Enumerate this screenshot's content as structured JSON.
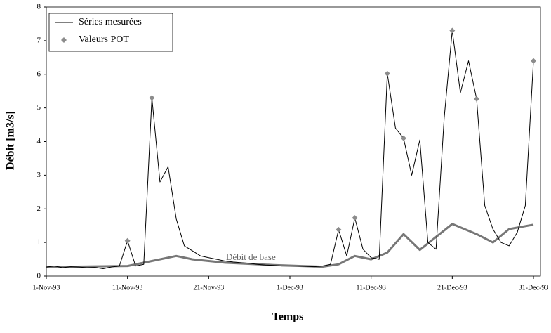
{
  "chart_data": {
    "type": "line",
    "xlabel": "Temps",
    "ylabel": "Débit [m3/s]",
    "xlim": [
      "1993-11-01",
      "1993-12-31"
    ],
    "ylim": [
      0,
      8
    ],
    "yticks": [
      0,
      1,
      2,
      3,
      4,
      5,
      6,
      7,
      8
    ],
    "xticks": [
      {
        "value": "1993-11-01",
        "label": "1-Nov-93"
      },
      {
        "value": "1993-11-11",
        "label": "11-Nov-93"
      },
      {
        "value": "1993-11-21",
        "label": "21-Nov-93"
      },
      {
        "value": "1993-12-01",
        "label": "1-Dec-93"
      },
      {
        "value": "1993-12-11",
        "label": "11-Dec-93"
      },
      {
        "value": "1993-12-21",
        "label": "21-Dec-93"
      },
      {
        "value": "1993-12-31",
        "label": "31-Dec-93"
      }
    ],
    "legend": "upper left",
    "series": [
      {
        "name": "Séries mesurées",
        "color": "#000000",
        "kind": "line",
        "x": [
          "1993-11-01",
          "1993-11-02",
          "1993-11-03",
          "1993-11-04",
          "1993-11-05",
          "1993-11-06",
          "1993-11-07",
          "1993-11-08",
          "1993-11-09",
          "1993-11-10",
          "1993-11-11",
          "1993-11-12",
          "1993-11-13",
          "1993-11-14",
          "1993-11-15",
          "1993-11-16",
          "1993-11-17",
          "1993-11-18",
          "1993-11-19",
          "1993-11-20",
          "1993-11-21",
          "1993-11-22",
          "1993-11-23",
          "1993-11-24",
          "1993-11-25",
          "1993-11-26",
          "1993-11-27",
          "1993-11-28",
          "1993-11-29",
          "1993-11-30",
          "1993-12-01",
          "1993-12-02",
          "1993-12-03",
          "1993-12-04",
          "1993-12-05",
          "1993-12-06",
          "1993-12-07",
          "1993-12-08",
          "1993-12-09",
          "1993-12-10",
          "1993-12-11",
          "1993-12-12",
          "1993-12-13",
          "1993-12-14",
          "1993-12-15",
          "1993-12-16",
          "1993-12-17",
          "1993-12-18",
          "1993-12-19",
          "1993-12-20",
          "1993-12-21",
          "1993-12-22",
          "1993-12-23",
          "1993-12-24",
          "1993-12-25",
          "1993-12-26",
          "1993-12-27",
          "1993-12-28",
          "1993-12-29",
          "1993-12-30",
          "1993-12-31"
        ],
        "values": [
          0.27,
          0.3,
          0.25,
          0.28,
          0.27,
          0.25,
          0.26,
          0.22,
          0.27,
          0.3,
          1.05,
          0.3,
          0.35,
          5.3,
          2.8,
          3.25,
          1.7,
          0.9,
          0.75,
          0.6,
          0.55,
          0.5,
          0.45,
          0.42,
          0.4,
          0.38,
          0.35,
          0.33,
          0.32,
          0.3,
          0.3,
          0.3,
          0.29,
          0.28,
          0.3,
          0.35,
          1.38,
          0.6,
          1.73,
          0.8,
          0.55,
          0.5,
          6.02,
          4.4,
          4.1,
          3.0,
          4.05,
          1.0,
          0.8,
          4.7,
          7.3,
          5.45,
          6.4,
          5.27,
          2.1,
          1.4,
          1.0,
          0.9,
          1.3,
          2.1,
          6.4
        ]
      },
      {
        "name": "Valeurs POT",
        "color": "#8c8c8c",
        "kind": "points",
        "x": [
          "1993-11-11",
          "1993-11-14",
          "1993-12-07",
          "1993-12-09",
          "1993-12-13",
          "1993-12-15",
          "1993-12-21",
          "1993-12-24",
          "1993-12-31"
        ],
        "values": [
          1.05,
          5.3,
          1.38,
          1.73,
          6.02,
          4.1,
          7.3,
          5.27,
          6.4
        ]
      },
      {
        "name": "Débit de base",
        "color": "#777777",
        "kind": "thick",
        "x": [
          "1993-11-01",
          "1993-11-11",
          "1993-11-14",
          "1993-11-17",
          "1993-11-19",
          "1993-11-23",
          "1993-11-29",
          "1993-12-05",
          "1993-12-07",
          "1993-12-09",
          "1993-12-11",
          "1993-12-13",
          "1993-12-15",
          "1993-12-17",
          "1993-12-21",
          "1993-12-24",
          "1993-12-26",
          "1993-12-28",
          "1993-12-31"
        ],
        "values": [
          0.27,
          0.3,
          0.45,
          0.6,
          0.5,
          0.4,
          0.33,
          0.28,
          0.35,
          0.6,
          0.5,
          0.7,
          1.25,
          0.78,
          1.55,
          1.25,
          1.0,
          1.4,
          1.53
        ]
      }
    ]
  }
}
